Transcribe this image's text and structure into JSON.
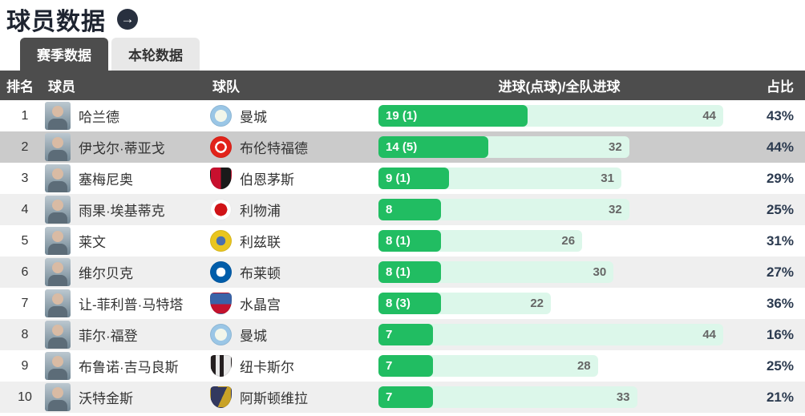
{
  "page": {
    "title": "球员数据",
    "arrow_icon": "→"
  },
  "tabs": [
    {
      "label": "赛季数据",
      "active": true
    },
    {
      "label": "本轮数据",
      "active": false
    }
  ],
  "table": {
    "headers": {
      "rank": "排名",
      "player": "球员",
      "team": "球队",
      "goals": "进球(点球)/全队进球",
      "share": "占比"
    },
    "max_goals": 44,
    "colors": {
      "bar_green": "#21bd62",
      "bar_track": "#dcf7ea",
      "header_bg": "#4d4d4d",
      "row_alt": "#efefef",
      "row_highlight": "#cbcbcb",
      "percent_text": "#2b3a4f",
      "team_goals_text": "#666666"
    },
    "rows": [
      {
        "rank": "1",
        "player": "哈兰德",
        "team": "曼城",
        "goals_label": "19 (1)",
        "goals": 19,
        "team_goals": 44,
        "share": "43%",
        "highlighted": false,
        "badge": {
          "shape": "circle",
          "pattern": "ring",
          "colors": [
            "#9ac6e6",
            "#f2f6ea"
          ]
        }
      },
      {
        "rank": "2",
        "player": "伊戈尔·蒂亚戈",
        "team": "布伦特福德",
        "goals_label": "14 (5)",
        "goals": 14,
        "team_goals": 32,
        "share": "44%",
        "highlighted": true,
        "badge": {
          "shape": "circle",
          "pattern": "double-ring",
          "colors": [
            "#e2231a",
            "#ffffff"
          ]
        }
      },
      {
        "rank": "3",
        "player": "塞梅尼奥",
        "team": "伯恩茅斯",
        "goals_label": "9 (1)",
        "goals": 9,
        "team_goals": 31,
        "share": "29%",
        "highlighted": false,
        "badge": {
          "shape": "shield",
          "pattern": "split-v",
          "colors": [
            "#c8102e",
            "#1a1a1a"
          ]
        }
      },
      {
        "rank": "4",
        "player": "雨果·埃基蒂克",
        "team": "利物浦",
        "goals_label": "8",
        "goals": 8,
        "team_goals": 32,
        "share": "25%",
        "highlighted": false,
        "badge": {
          "shape": "circle",
          "pattern": "dot",
          "colors": [
            "#d01317",
            "#ffffff"
          ]
        }
      },
      {
        "rank": "5",
        "player": "莱文",
        "team": "利兹联",
        "goals_label": "8 (1)",
        "goals": 8,
        "team_goals": 26,
        "share": "31%",
        "highlighted": false,
        "badge": {
          "shape": "circle",
          "pattern": "bullseye",
          "colors": [
            "#e9c51f",
            "#4a6fae"
          ]
        }
      },
      {
        "rank": "6",
        "player": "维尔贝克",
        "team": "布莱顿",
        "goals_label": "8 (1)",
        "goals": 8,
        "team_goals": 30,
        "share": "27%",
        "highlighted": false,
        "badge": {
          "shape": "circle",
          "pattern": "bullseye",
          "colors": [
            "#005daa",
            "#ffffff"
          ]
        }
      },
      {
        "rank": "7",
        "player": "让-菲利普·马特塔",
        "team": "水晶宫",
        "goals_label": "8 (3)",
        "goals": 8,
        "team_goals": 22,
        "share": "36%",
        "highlighted": false,
        "badge": {
          "shape": "shield",
          "pattern": "split-h",
          "colors": [
            "#3a63a8",
            "#c4122e"
          ]
        }
      },
      {
        "rank": "8",
        "player": "菲尔·福登",
        "team": "曼城",
        "goals_label": "7",
        "goals": 7,
        "team_goals": 44,
        "share": "16%",
        "highlighted": false,
        "badge": {
          "shape": "circle",
          "pattern": "ring",
          "colors": [
            "#9ac6e6",
            "#f2f6ea"
          ]
        }
      },
      {
        "rank": "9",
        "player": "布鲁诺·吉马良斯",
        "team": "纽卡斯尔",
        "goals_label": "7",
        "goals": 7,
        "team_goals": 28,
        "share": "25%",
        "highlighted": false,
        "badge": {
          "shape": "shield",
          "pattern": "stripes",
          "colors": [
            "#241f20",
            "#e9e9e9"
          ]
        }
      },
      {
        "rank": "10",
        "player": "沃特金斯",
        "team": "阿斯顿维拉",
        "goals_label": "7",
        "goals": 7,
        "team_goals": 33,
        "share": "21%",
        "highlighted": false,
        "badge": {
          "shape": "shield",
          "pattern": "split-d",
          "colors": [
            "#33395f",
            "#c9a227"
          ]
        }
      }
    ]
  }
}
